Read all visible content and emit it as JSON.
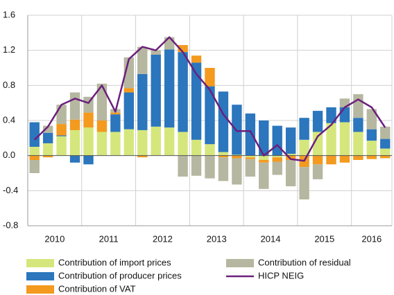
{
  "chart_data": {
    "type": "bar",
    "stacked": true,
    "categories": [
      null,
      null,
      null,
      null,
      null,
      null,
      null,
      null,
      null,
      null,
      null,
      null,
      null,
      null,
      null,
      null,
      null,
      null,
      null,
      null,
      null,
      null,
      null,
      null,
      null,
      null,
      null
    ],
    "year_labels": [
      "2010",
      "2011",
      "2012",
      "2013",
      "2014",
      "2015",
      "2016"
    ],
    "ylim": [
      -0.8,
      1.6
    ],
    "yticks": [
      -0.8,
      -0.4,
      {
        "value": 0,
        "label": "0.0"
      },
      0.4,
      0.8,
      1.2,
      1.6
    ],
    "grid": true,
    "series": [
      {
        "name": "Contribution of import prices",
        "color": "#d5e77c",
        "values": [
          0.1,
          0.14,
          0.22,
          0.29,
          0.32,
          0.27,
          0.27,
          0.3,
          0.29,
          0.33,
          0.32,
          0.27,
          0.18,
          0.13,
          0.04,
          0.01,
          -0.02,
          -0.05,
          -0.02,
          0.02,
          0.18,
          0.27,
          0.37,
          0.38,
          0.27,
          0.17,
          0.08
        ]
      },
      {
        "name": "Contribution of producer prices",
        "color": "#2b76bd",
        "values": [
          0.28,
          0.12,
          0.01,
          -0.08,
          -0.1,
          0.0,
          0.2,
          0.42,
          0.64,
          0.82,
          0.89,
          0.91,
          0.88,
          0.66,
          0.69,
          0.57,
          0.48,
          0.4,
          0.34,
          0.3,
          0.25,
          0.24,
          0.18,
          0.17,
          0.16,
          0.13,
          0.11
        ]
      },
      {
        "name": "Contribution of VAT",
        "color": "#f39a1f",
        "values": [
          -0.05,
          -0.02,
          0.13,
          0.12,
          0.17,
          0.13,
          0.02,
          0.05,
          -0.02,
          0.0,
          0.0,
          0.08,
          0.08,
          0.21,
          -0.02,
          -0.03,
          -0.02,
          -0.03,
          -0.05,
          -0.05,
          -0.13,
          -0.1,
          -0.1,
          -0.08,
          -0.05,
          -0.04,
          -0.03
        ]
      },
      {
        "name": "Contribution of residual",
        "color": "#b6b7a0",
        "values": [
          -0.15,
          0.08,
          0.22,
          0.31,
          0.18,
          0.42,
          0.04,
          0.35,
          0.31,
          0.05,
          0.14,
          -0.24,
          -0.23,
          -0.26,
          -0.27,
          -0.3,
          -0.2,
          -0.3,
          -0.15,
          -0.3,
          -0.37,
          -0.17,
          0.0,
          0.1,
          0.27,
          0.23,
          0.14
        ]
      },
      {
        "name": "HICP NEIG",
        "color": "#6b1f7c",
        "type": "line",
        "values": [
          0.18,
          0.33,
          0.58,
          0.65,
          0.6,
          0.8,
          0.5,
          1.1,
          1.24,
          1.2,
          1.35,
          1.18,
          0.93,
          0.75,
          0.47,
          0.28,
          0.28,
          0.0,
          0.12,
          -0.04,
          -0.06,
          0.22,
          0.35,
          0.55,
          0.64,
          0.55,
          0.32
        ]
      }
    ]
  }
}
